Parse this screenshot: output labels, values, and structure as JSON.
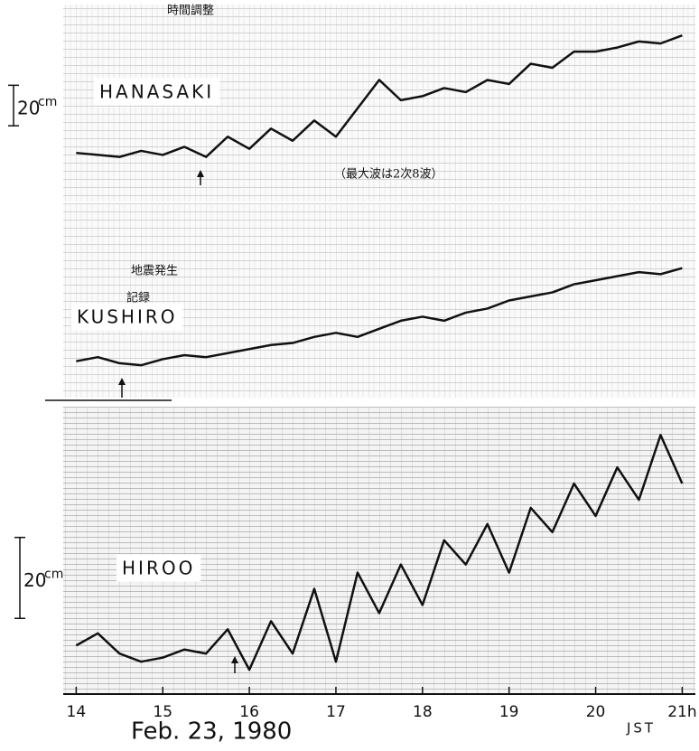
{
  "chart_data": [
    {
      "type": "line",
      "title": "HANASAKI",
      "scale_value": 20,
      "scale_unit": "cm",
      "annotations": [
        "時間調整",
        "（最大波は2次8波）"
      ],
      "x": [
        14,
        14.25,
        14.5,
        14.75,
        15,
        15.25,
        15.5,
        15.75,
        16,
        16.25,
        16.5,
        16.75,
        17,
        17.25,
        17.5,
        17.75,
        18,
        18.25,
        18.5,
        18.75,
        19,
        19.25,
        19.5,
        19.75,
        20,
        20.25,
        20.5,
        20.75,
        21
      ],
      "values": [
        0,
        -1,
        -2,
        1,
        -1,
        3,
        -2,
        8,
        2,
        12,
        6,
        16,
        8,
        22,
        36,
        26,
        28,
        32,
        30,
        36,
        34,
        44,
        42,
        50,
        50,
        52,
        55,
        54,
        58
      ],
      "xlim": [
        13.85,
        21.1
      ],
      "ylim": [
        -24,
        71
      ],
      "color": "#111111"
    },
    {
      "type": "line",
      "title": "KUSHIRO",
      "annotations": [
        "地震発生",
        "記録"
      ],
      "x": [
        14,
        14.25,
        14.5,
        14.75,
        15,
        15.25,
        15.5,
        15.75,
        16,
        16.25,
        16.5,
        16.75,
        17,
        17.25,
        17.5,
        17.75,
        18,
        18.25,
        18.5,
        18.75,
        19,
        19.25,
        19.5,
        19.75,
        20,
        20.25,
        20.5,
        20.75,
        21
      ],
      "values": [
        0,
        2,
        -1,
        -2,
        1,
        3,
        2,
        4,
        6,
        8,
        9,
        12,
        14,
        12,
        16,
        20,
        22,
        20,
        24,
        26,
        30,
        32,
        34,
        38,
        40,
        42,
        44,
        43,
        46
      ],
      "xlim": [
        13.85,
        21.1
      ],
      "ylim": [
        -18,
        78
      ],
      "color": "#111111"
    },
    {
      "type": "line",
      "title": "HIROO",
      "scale_value": 20,
      "scale_unit": "cm",
      "x": [
        14,
        14.25,
        14.5,
        14.75,
        15,
        15.25,
        15.5,
        15.75,
        16,
        16.25,
        16.5,
        16.75,
        17,
        17.25,
        17.5,
        17.75,
        18,
        18.25,
        18.5,
        18.75,
        19,
        19.25,
        19.5,
        19.75,
        20,
        20.25,
        20.5,
        20.75,
        21
      ],
      "values": [
        0,
        3,
        -2,
        -4,
        -3,
        -1,
        -2,
        4,
        -6,
        6,
        -2,
        14,
        -4,
        18,
        8,
        20,
        10,
        26,
        20,
        30,
        18,
        34,
        28,
        40,
        32,
        44,
        36,
        52,
        40
      ],
      "xlim": [
        13.85,
        21.1
      ],
      "ylim": [
        -12,
        59
      ],
      "color": "#111111",
      "xticks": [
        14,
        15,
        16,
        17,
        18,
        19,
        20,
        {
          "value": 21,
          "label": "21h"
        }
      ],
      "xlabel": "JST"
    }
  ],
  "caption": "Feb. 23, 1980"
}
